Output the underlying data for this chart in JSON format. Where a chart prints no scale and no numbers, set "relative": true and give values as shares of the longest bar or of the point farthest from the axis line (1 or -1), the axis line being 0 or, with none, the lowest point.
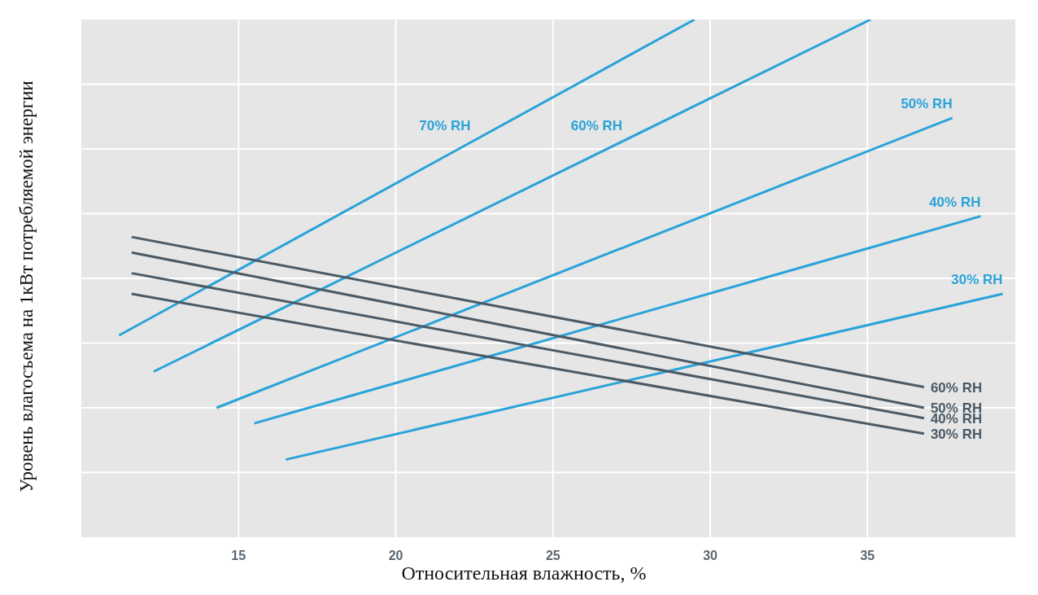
{
  "chart_data": {
    "type": "line",
    "relative": true,
    "xlabel": "Относительная влажность, %",
    "ylabel": "Уровень влагосъема на 1кВт потребляемой энергии",
    "xlim": [
      10,
      39.7
    ],
    "xticks": [
      15,
      20,
      25,
      30,
      35
    ],
    "grid": true,
    "marker": "none",
    "line_style": "solid",
    "series": [
      {
        "name": "70% RH",
        "color": "#29a3d9",
        "x": [
          11.2,
          29.5
        ],
        "values": [
          0.39,
          1.0
        ]
      },
      {
        "name": "60% RH",
        "color": "#29a3d9",
        "x": [
          12.3,
          35.1
        ],
        "values": [
          0.32,
          1.0
        ]
      },
      {
        "name": "50% RH",
        "color": "#29a3d9",
        "x": [
          14.3,
          37.7
        ],
        "values": [
          0.25,
          0.81
        ]
      },
      {
        "name": "40% RH",
        "color": "#29a3d9",
        "x": [
          15.5,
          38.6
        ],
        "values": [
          0.22,
          0.62
        ]
      },
      {
        "name": "30% RH",
        "color": "#29a3d9",
        "x": [
          16.5,
          39.3
        ],
        "values": [
          0.15,
          0.47
        ]
      },
      {
        "name": "60% RH",
        "color": "#4a5a66",
        "x": [
          11.6,
          36.8
        ],
        "values": [
          0.58,
          0.29
        ]
      },
      {
        "name": "50% RH",
        "color": "#4a5a66",
        "x": [
          11.6,
          36.8
        ],
        "values": [
          0.55,
          0.25
        ]
      },
      {
        "name": "40% RH",
        "color": "#4a5a66",
        "x": [
          11.6,
          36.8
        ],
        "values": [
          0.51,
          0.23
        ]
      },
      {
        "name": "30% RH",
        "color": "#4a5a66",
        "x": [
          11.6,
          36.8
        ],
        "values": [
          0.47,
          0.2
        ]
      }
    ]
  }
}
